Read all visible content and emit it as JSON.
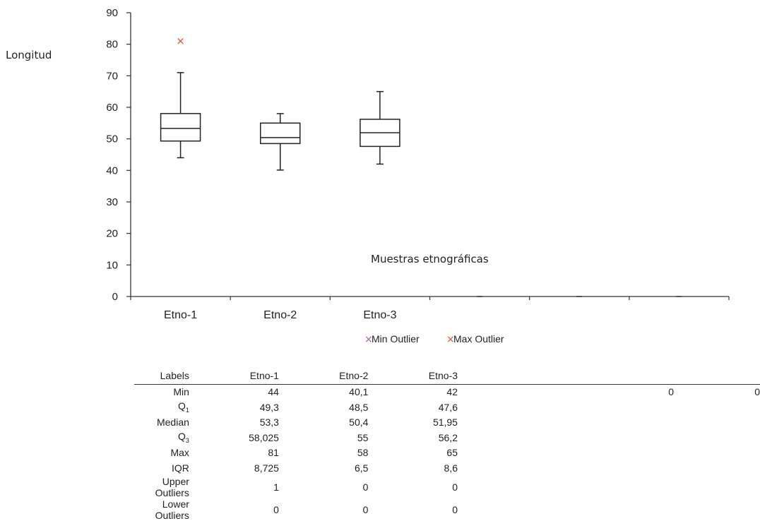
{
  "chart_data": {
    "type": "box",
    "ylabel": "Longitud",
    "xlabel": "Muestras etnográficas",
    "ylim": [
      0,
      90
    ],
    "yticks": [
      0,
      10,
      20,
      30,
      40,
      50,
      60,
      70,
      80,
      90
    ],
    "categories": [
      "Etno-1",
      "Etno-2",
      "Etno-3"
    ],
    "extra_empty_slots": 3,
    "boxes": [
      {
        "name": "Etno-1",
        "min": 44,
        "q1": 49.3,
        "median": 53.3,
        "q3": 58.025,
        "whisker_high": 71,
        "max": 81,
        "max_outliers": [
          81
        ]
      },
      {
        "name": "Etno-2",
        "min": 40.1,
        "q1": 48.5,
        "median": 50.4,
        "q3": 55,
        "whisker_high": 58,
        "max": 58,
        "max_outliers": []
      },
      {
        "name": "Etno-3",
        "min": 42,
        "q1": 47.6,
        "median": 51.95,
        "q3": 56.2,
        "whisker_high": 65,
        "max": 65,
        "max_outliers": []
      }
    ],
    "legend": [
      {
        "label": "Min Outlier",
        "color": "#a65aa6",
        "marker": "x"
      },
      {
        "label": "Max Outlier",
        "color": "#e0502a",
        "marker": "x"
      }
    ],
    "legend_position": "bottom"
  },
  "table": {
    "header": {
      "label": "Labels",
      "cols": [
        "Etno-1",
        "Etno-2",
        "Etno-3"
      ]
    },
    "rows": [
      {
        "label": "Min",
        "values": [
          "44",
          "40,1",
          "42"
        ],
        "extra": [
          "0",
          "0"
        ]
      },
      {
        "label": "Q",
        "sub": "1",
        "values": [
          "49,3",
          "48,5",
          "47,6"
        ]
      },
      {
        "label": "Median",
        "values": [
          "53,3",
          "50,4",
          "51,95"
        ]
      },
      {
        "label": "Q",
        "sub": "3",
        "values": [
          "58,025",
          "55",
          "56,2"
        ]
      },
      {
        "label": "Max",
        "values": [
          "81",
          "58",
          "65"
        ]
      },
      {
        "label": "IQR",
        "values": [
          "8,725",
          "6,5",
          "8,6"
        ]
      },
      {
        "label": "Upper Outliers",
        "values": [
          "1",
          "0",
          "0"
        ]
      },
      {
        "label": "Lower Outliers",
        "values": [
          "0",
          "0",
          "0"
        ]
      }
    ]
  }
}
